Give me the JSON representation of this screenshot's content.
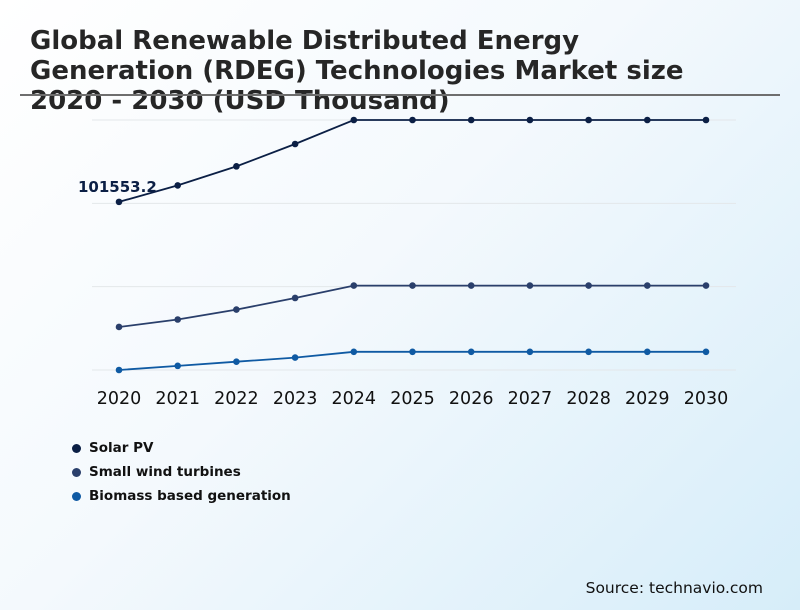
{
  "chart_data": {
    "type": "line",
    "title": "Global Renewable Distributed Energy Generation (RDEG) Technologies Market size 2020 - 2030 (USD Thousand)",
    "categories": [
      "2020",
      "2021",
      "2022",
      "2023",
      "2024",
      "2025",
      "2026",
      "2027",
      "2028",
      "2029",
      "2030"
    ],
    "series": [
      {
        "name": "Solar PV",
        "color": "#0b1f45",
        "values": [
          101553.2,
          111500,
          123000,
          136500,
          151000,
          151000,
          151000,
          151000,
          151000,
          151000,
          151000
        ]
      },
      {
        "name": "Small wind turbines",
        "color": "#2a3f6b",
        "values": [
          26000,
          30500,
          36500,
          43500,
          51000,
          51000,
          51000,
          51000,
          51000,
          51000,
          51000
        ]
      },
      {
        "name": "Biomass based generation",
        "color": "#0f5aa3",
        "values": [
          0,
          2500,
          5000,
          7500,
          11000,
          11000,
          11000,
          11000,
          11000,
          11000,
          11000
        ]
      }
    ],
    "data_labels": [
      {
        "series": 0,
        "index": 0,
        "text": "101553.2"
      }
    ],
    "ylim": [
      0,
      151000
    ],
    "xlabel": "",
    "ylabel": "",
    "grid": true,
    "legend_position": "bottom-left"
  },
  "source": "Source: technavio.com"
}
